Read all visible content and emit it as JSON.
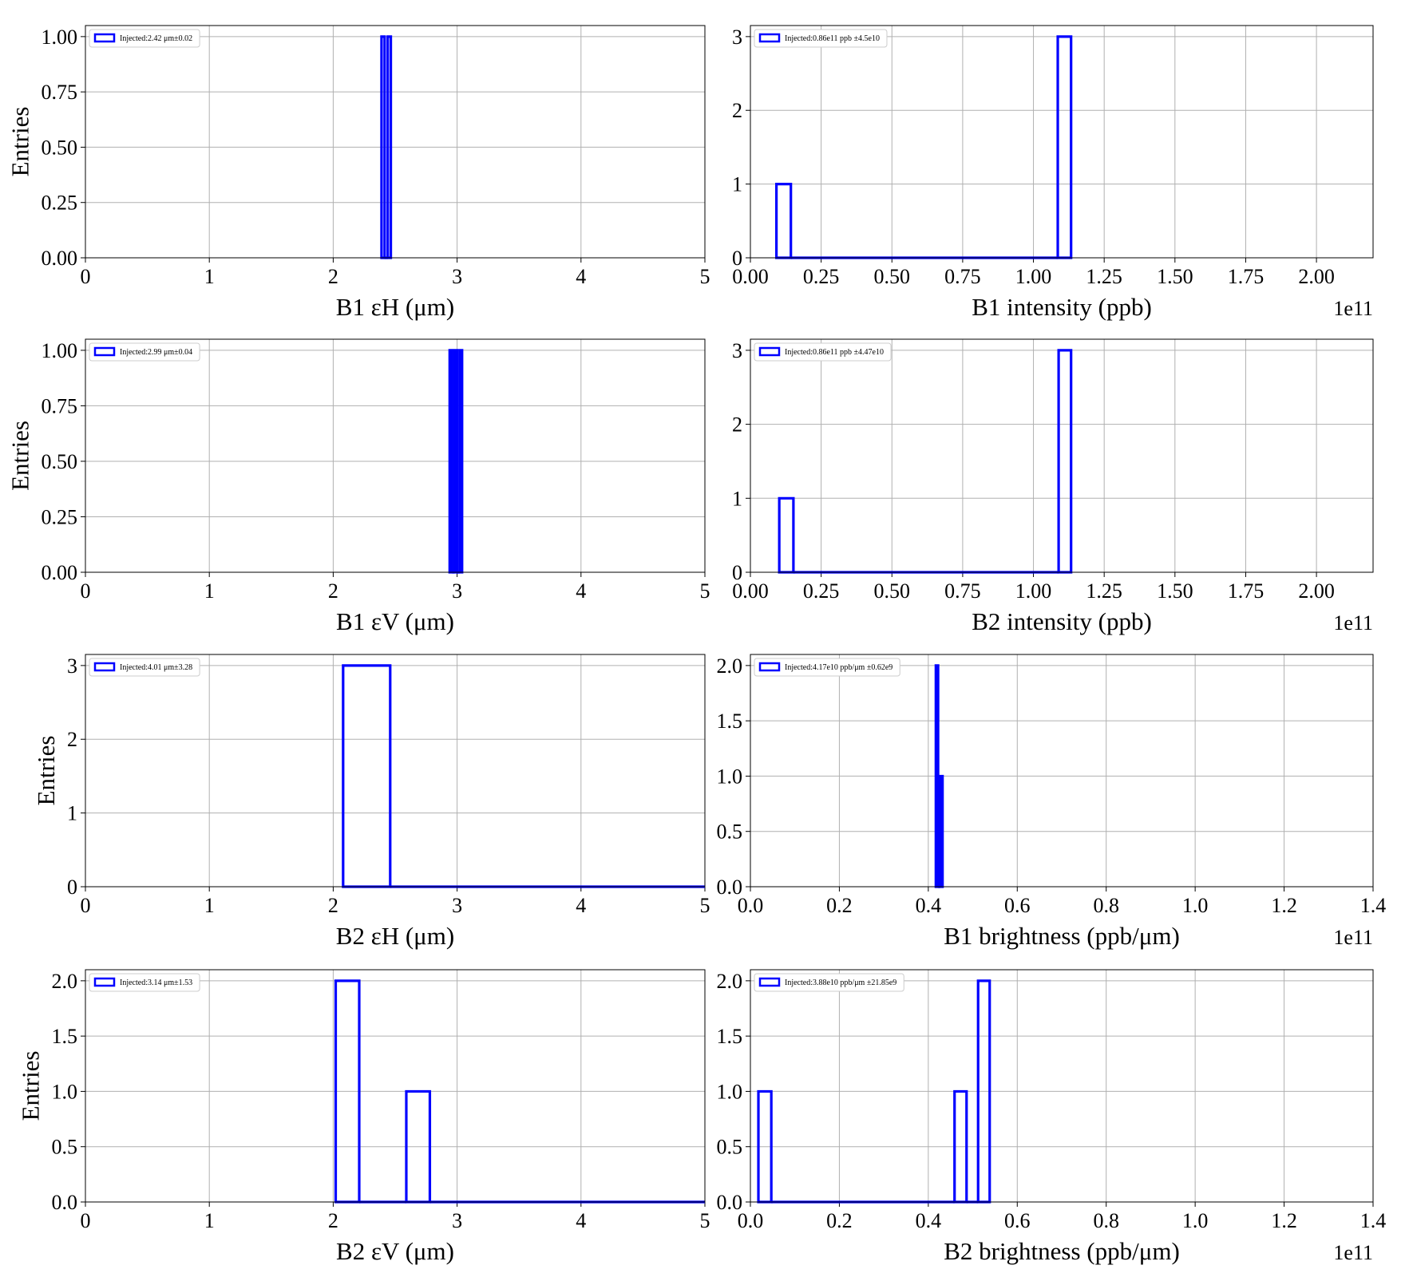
{
  "chart_data": [
    {
      "type": "histogram",
      "xlabel": "B1 εH (μm)",
      "ylabel": "Entries",
      "xlim": [
        0,
        5
      ],
      "xticks": [
        0,
        1,
        2,
        3,
        4,
        5
      ],
      "ylim": [
        0,
        1.05
      ],
      "yticks": [
        {
          "value": 0,
          "label": "0.00"
        },
        {
          "value": 0.25,
          "label": "0.25"
        },
        {
          "value": 0.5,
          "label": "0.50"
        },
        {
          "value": 0.75,
          "label": "0.75"
        },
        {
          "value": 1,
          "label": "1.00"
        }
      ],
      "bins": [
        2.39,
        2.415,
        2.44,
        2.465
      ],
      "series": [
        {
          "name": "Injected:2.42 μm±0.02",
          "color": "#0000ff",
          "values": [
            1,
            0,
            1
          ]
        }
      ],
      "grid": true,
      "legend": "upper left"
    },
    {
      "type": "histogram",
      "xlabel": "B1 intensity (ppb)",
      "x_offset_label": "1e11",
      "xlim": [
        0,
        2.2
      ],
      "xticks": [
        {
          "value": 0,
          "label": "0.00"
        },
        0.25,
        {
          "value": 0.5,
          "label": "0.50"
        },
        0.75,
        {
          "value": 1,
          "label": "1.00"
        },
        1.25,
        {
          "value": 1.5,
          "label": "1.50"
        },
        1.75,
        {
          "value": 2,
          "label": "2.00"
        }
      ],
      "ylim": [
        0,
        3.15
      ],
      "yticks": [
        0,
        1,
        2,
        3
      ],
      "bins": [
        0.092,
        0.143,
        1.086,
        1.133
      ],
      "series": [
        {
          "name": "Injected:0.86e11 ppb ±4.5e10",
          "color": "#0000ff",
          "values": [
            1,
            0,
            3
          ]
        }
      ],
      "grid": true,
      "legend": "upper left"
    },
    {
      "type": "histogram",
      "xlabel": "B1 εV (μm)",
      "ylabel": "Entries",
      "xlim": [
        0,
        5
      ],
      "xticks": [
        0,
        1,
        2,
        3,
        4,
        5
      ],
      "ylim": [
        0,
        1.05
      ],
      "yticks": [
        {
          "value": 0,
          "label": "0.00"
        },
        {
          "value": 0.25,
          "label": "0.25"
        },
        {
          "value": 0.5,
          "label": "0.50"
        },
        {
          "value": 0.75,
          "label": "0.75"
        },
        {
          "value": 1,
          "label": "1.00"
        }
      ],
      "bins": [
        2.94,
        2.96,
        2.98,
        3.0,
        3.02,
        3.04
      ],
      "series": [
        {
          "name": "Injected:2.99 μm±0.04",
          "color": "#0000ff",
          "values": [
            1,
            0,
            1,
            0,
            1
          ]
        }
      ],
      "grid": true,
      "legend": "upper left"
    },
    {
      "type": "histogram",
      "xlabel": "B2 intensity (ppb)",
      "x_offset_label": "1e11",
      "xlim": [
        0,
        2.2
      ],
      "xticks": [
        {
          "value": 0,
          "label": "0.00"
        },
        0.25,
        {
          "value": 0.5,
          "label": "0.50"
        },
        0.75,
        {
          "value": 1,
          "label": "1.00"
        },
        1.25,
        {
          "value": 1.5,
          "label": "1.50"
        },
        1.75,
        {
          "value": 2,
          "label": "2.00"
        }
      ],
      "ylim": [
        0,
        3.15
      ],
      "yticks": [
        0,
        1,
        2,
        3
      ],
      "bins": [
        0.102,
        0.152,
        1.089,
        1.133
      ],
      "series": [
        {
          "name": "Injected:0.86e11 ppb ±4.47e10",
          "color": "#0000ff",
          "values": [
            1,
            0,
            3
          ]
        }
      ],
      "grid": true,
      "legend": "upper left"
    },
    {
      "type": "histogram",
      "xlabel": "B2 εH (μm)",
      "ylabel": "Entries",
      "xlim": [
        0,
        5
      ],
      "xticks": [
        0,
        1,
        2,
        3,
        4,
        5
      ],
      "ylim": [
        0,
        3.15
      ],
      "yticks": [
        0,
        1,
        2,
        3
      ],
      "bins": [
        2.08,
        2.46,
        5.0
      ],
      "series": [
        {
          "name": "Injected:4.01 μm±3.28",
          "color": "#0000ff",
          "values": [
            3,
            0
          ]
        }
      ],
      "grid": true,
      "legend": "upper left"
    },
    {
      "type": "histogram",
      "xlabel": "B1 brightness (ppb/μm)",
      "x_offset_label": "1e11",
      "xlim": [
        0,
        1.4
      ],
      "xticks": [
        {
          "value": 0,
          "label": "0.0"
        },
        0.2,
        0.4,
        0.6,
        0.8,
        {
          "value": 1,
          "label": "1.0"
        },
        1.2,
        1.4
      ],
      "ylim": [
        0,
        2.1
      ],
      "yticks": [
        {
          "value": 0,
          "label": "0.0"
        },
        0.5,
        {
          "value": 1,
          "label": "1.0"
        },
        1.5,
        {
          "value": 2,
          "label": "2.0"
        }
      ],
      "bins": [
        0.417,
        0.422,
        0.427,
        0.432
      ],
      "series": [
        {
          "name": "Injected:4.17e10 ppb/μm ±0.62e9",
          "color": "#0000ff",
          "values": [
            2,
            0,
            1
          ]
        }
      ],
      "grid": true,
      "legend": "upper left"
    },
    {
      "type": "histogram",
      "xlabel": "B2 εV (μm)",
      "ylabel": "Entries",
      "xlim": [
        0,
        5
      ],
      "xticks": [
        0,
        1,
        2,
        3,
        4,
        5
      ],
      "ylim": [
        0,
        2.1
      ],
      "yticks": [
        {
          "value": 0,
          "label": "0.0"
        },
        0.5,
        {
          "value": 1,
          "label": "1.0"
        },
        1.5,
        {
          "value": 2,
          "label": "2.0"
        }
      ],
      "bins": [
        2.02,
        2.21,
        2.59,
        2.78,
        5.0
      ],
      "series": [
        {
          "name": "Injected:3.14 μm±1.53",
          "color": "#0000ff",
          "values": [
            2,
            0,
            1,
            0
          ]
        }
      ],
      "grid": true,
      "legend": "upper left"
    },
    {
      "type": "histogram",
      "xlabel": "B2 brightness (ppb/μm)",
      "x_offset_label": "1e11",
      "xlim": [
        0,
        1.4
      ],
      "xticks": [
        {
          "value": 0,
          "label": "0.0"
        },
        0.2,
        0.4,
        0.6,
        0.8,
        {
          "value": 1,
          "label": "1.0"
        },
        1.2,
        1.4
      ],
      "ylim": [
        0,
        2.1
      ],
      "yticks": [
        {
          "value": 0,
          "label": "0.0"
        },
        0.5,
        {
          "value": 1,
          "label": "1.0"
        },
        1.5,
        {
          "value": 2,
          "label": "2.0"
        }
      ],
      "bins": [
        0.018,
        0.047,
        0.459,
        0.486,
        0.512,
        0.538
      ],
      "series": [
        {
          "name": "Injected:3.88e10 ppb/μm ±21.85e9",
          "color": "#0000ff",
          "values": [
            1,
            0,
            1,
            0,
            2
          ]
        }
      ],
      "grid": true,
      "legend": "upper left"
    }
  ]
}
